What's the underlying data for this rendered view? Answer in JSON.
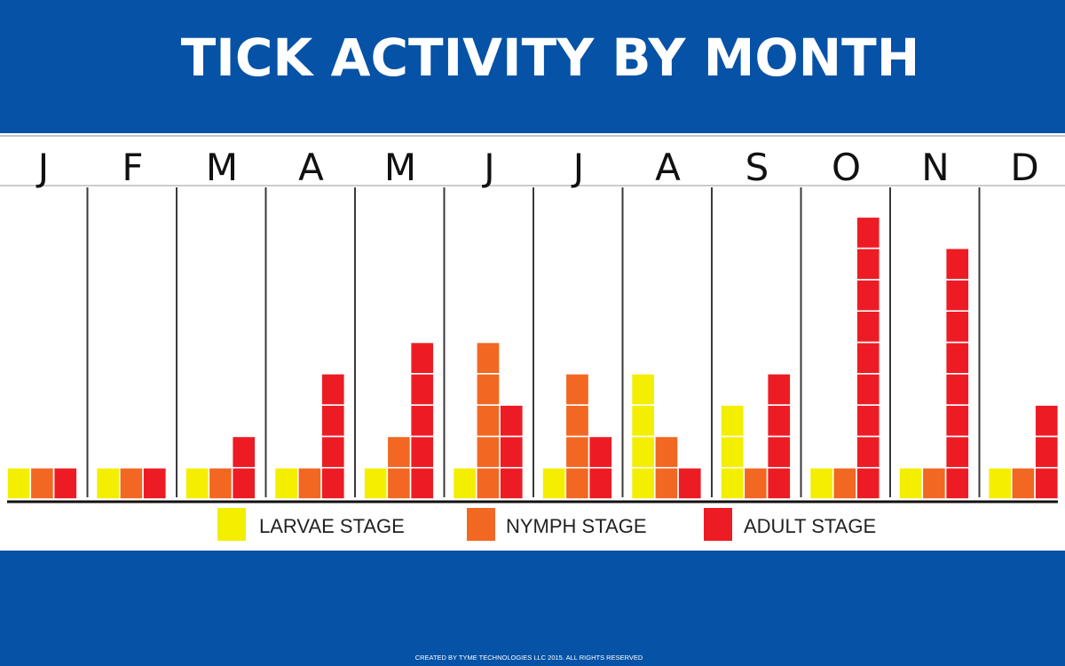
{
  "title": "TICK ACTIVITY BY MONTH",
  "credit": "CREATED BY TYME TECHNOLOGIES LLC 2015. ALL RIGHTS RESERVED",
  "colors": {
    "band": "#0652a6",
    "larvae": "#f4ee00",
    "nymph": "#f26722",
    "adult": "#ed1c24"
  },
  "chart_data": {
    "type": "bar",
    "categories": [
      "J",
      "F",
      "M",
      "A",
      "M",
      "J",
      "J",
      "A",
      "S",
      "O",
      "N",
      "D"
    ],
    "series": [
      {
        "name": "LARVAE STAGE",
        "color": "#f4ee00",
        "values": [
          1,
          1,
          1,
          1,
          1,
          1,
          1,
          4,
          3,
          1,
          1,
          1
        ]
      },
      {
        "name": "NYMPH STAGE",
        "color": "#f26722",
        "values": [
          1,
          1,
          1,
          1,
          2,
          5,
          4,
          2,
          1,
          1,
          1,
          1
        ]
      },
      {
        "name": "ADULT STAGE",
        "color": "#ed1c24",
        "values": [
          1,
          1,
          2,
          4,
          5,
          3,
          2,
          1,
          4,
          9,
          8,
          3
        ]
      }
    ],
    "unit_blocks": true,
    "legend": "bottom-center",
    "ylim": [
      0,
      9
    ]
  }
}
